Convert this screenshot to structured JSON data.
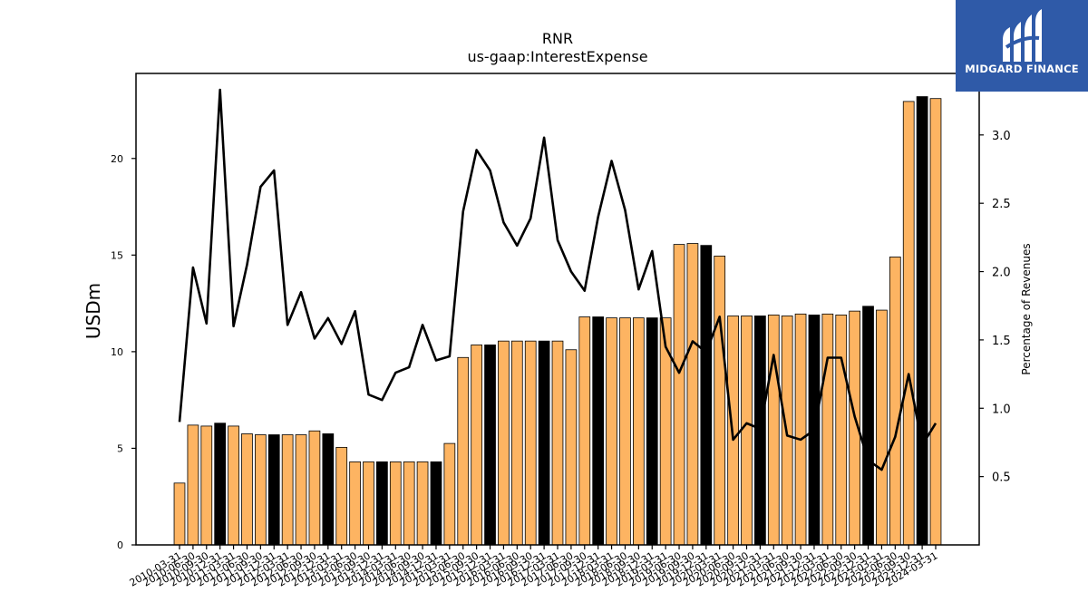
{
  "chart_data": {
    "type": "bar",
    "title": "RNR",
    "subtitle": "us-gaap:InterestExpense",
    "ylabel": "USDm",
    "y2label": "Percentage of Revenues",
    "ylim": [
      0,
      24.4
    ],
    "y2lim": [
      0,
      3.45
    ],
    "yticks": [
      0,
      5,
      10,
      15,
      20
    ],
    "y2ticks": [
      0.5,
      1.0,
      1.5,
      2.0,
      2.5,
      3.0
    ],
    "grid": false,
    "categories": [
      "2010-03-31",
      "2010-06-30",
      "2010-09-30",
      "2010-12-31",
      "2011-03-31",
      "2011-06-30",
      "2011-09-30",
      "2011-12-31",
      "2012-03-31",
      "2012-06-30",
      "2012-09-30",
      "2012-12-31",
      "2013-03-31",
      "2013-06-30",
      "2013-09-30",
      "2013-12-31",
      "2014-03-31",
      "2014-06-30",
      "2014-09-30",
      "2014-12-31",
      "2015-03-31",
      "2015-06-30",
      "2015-09-30",
      "2015-12-31",
      "2016-03-31",
      "2016-06-30",
      "2016-09-30",
      "2016-12-31",
      "2017-03-31",
      "2017-06-30",
      "2017-09-30",
      "2017-12-31",
      "2018-03-31",
      "2018-06-30",
      "2018-09-30",
      "2018-12-31",
      "2019-03-31",
      "2019-06-30",
      "2019-09-30",
      "2019-12-31",
      "2020-03-31",
      "2020-06-30",
      "2020-09-30",
      "2020-12-31",
      "2021-03-31",
      "2021-06-30",
      "2021-09-30",
      "2021-12-31",
      "2022-03-31",
      "2022-06-30",
      "2022-09-30",
      "2022-12-31",
      "2023-03-31",
      "2023-06-30",
      "2023-09-30",
      "2023-12-31",
      "2024-03-31"
    ],
    "series": [
      {
        "kind": "bar",
        "axis": "left",
        "values": [
          3.2,
          6.2,
          6.15,
          6.3,
          6.15,
          5.75,
          5.7,
          5.7,
          5.7,
          5.7,
          5.9,
          5.75,
          5.05,
          4.3,
          4.3,
          4.3,
          4.3,
          4.3,
          4.3,
          4.3,
          5.25,
          9.7,
          10.35,
          10.35,
          10.55,
          10.55,
          10.55,
          10.55,
          10.55,
          10.1,
          11.8,
          11.8,
          11.75,
          11.75,
          11.75,
          11.75,
          11.75,
          15.55,
          15.6,
          15.5,
          14.95,
          11.85,
          11.85,
          11.85,
          11.9,
          11.85,
          11.95,
          11.9,
          11.95,
          11.9,
          12.1,
          12.35,
          12.15,
          14.9,
          22.95,
          23.2,
          23.1
        ],
        "colors": [
          "#fdb462",
          "#fdb462",
          "#fdb462",
          "#000000",
          "#fdb462",
          "#fdb462",
          "#fdb462",
          "#000000",
          "#fdb462",
          "#fdb462",
          "#fdb462",
          "#000000",
          "#fdb462",
          "#fdb462",
          "#fdb462",
          "#000000",
          "#fdb462",
          "#fdb462",
          "#fdb462",
          "#000000",
          "#fdb462",
          "#fdb462",
          "#fdb462",
          "#000000",
          "#fdb462",
          "#fdb462",
          "#fdb462",
          "#000000",
          "#fdb462",
          "#fdb462",
          "#fdb462",
          "#000000",
          "#fdb462",
          "#fdb462",
          "#fdb462",
          "#000000",
          "#fdb462",
          "#fdb462",
          "#fdb462",
          "#000000",
          "#fdb462",
          "#fdb462",
          "#fdb462",
          "#000000",
          "#fdb462",
          "#fdb462",
          "#fdb462",
          "#000000",
          "#fdb462",
          "#fdb462",
          "#fdb462",
          "#000000",
          "#fdb462",
          "#fdb462",
          "#fdb462",
          "#000000",
          "#fdb462"
        ]
      },
      {
        "kind": "line",
        "axis": "right",
        "color": "#000000",
        "values": [
          0.9,
          2.03,
          1.62,
          3.33,
          1.6,
          2.05,
          2.62,
          2.74,
          1.61,
          1.85,
          1.51,
          1.66,
          1.47,
          1.71,
          1.1,
          1.06,
          1.26,
          1.3,
          1.61,
          1.35,
          1.38,
          2.44,
          2.89,
          2.74,
          2.36,
          2.19,
          2.39,
          2.98,
          2.23,
          2.0,
          1.86,
          2.4,
          2.81,
          2.45,
          1.87,
          2.15,
          1.45,
          1.26,
          1.49,
          1.41,
          1.67,
          0.77,
          0.89,
          0.85,
          1.39,
          0.8,
          0.77,
          0.84,
          1.37,
          1.37,
          0.94,
          0.62,
          0.55,
          0.79,
          1.25,
          0.73,
          0.89
        ]
      }
    ]
  },
  "logo": {
    "text": "MIDGARD FINANCE"
  }
}
